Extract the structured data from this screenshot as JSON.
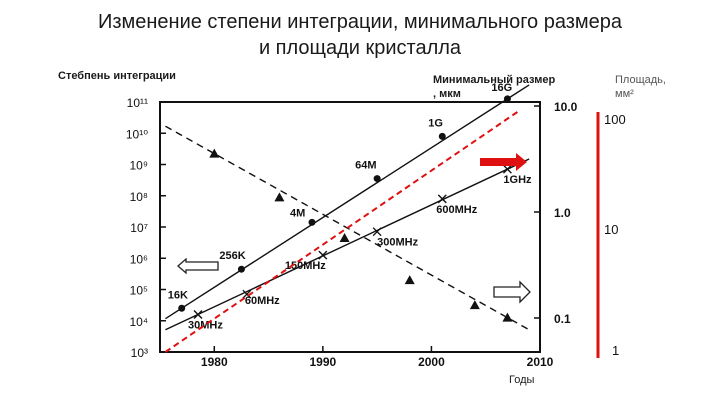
{
  "header": {
    "title_line1": "Изменение степени интеграции, минимального размера",
    "title_line2": "и площади кристалла"
  },
  "axis_labels": {
    "left": "Стебпень интеграции",
    "right_line1": "Минимальный размер",
    "right_line2": ", мкм",
    "area_line1": "Площадь,",
    "area_line2": "мм²",
    "bottom": "Годы"
  },
  "chart_data": {
    "type": "line",
    "x_ticks": [
      "1980",
      "1990",
      "2000",
      "2010"
    ],
    "y_left_ticks": [
      "10³",
      "10⁴",
      "10⁵",
      "10⁶",
      "10⁷",
      "10⁸",
      "10⁹",
      "10¹⁰",
      "10¹¹"
    ],
    "y_right_ticks": [
      "10.0",
      "1.0",
      "0.1"
    ],
    "y_area_ticks": [
      "100",
      "10",
      "1"
    ],
    "xlim": [
      1975,
      2010
    ],
    "ylim_log10": [
      3,
      11
    ],
    "series": [
      {
        "style": "solid-circle",
        "points": [
          {
            "x": 1977,
            "y": 4.4,
            "label": "16K"
          },
          {
            "x": 1982.5,
            "y": 5.65,
            "label": "256K"
          },
          {
            "x": 1989,
            "y": 7.15,
            "label": "4M"
          },
          {
            "x": 1995,
            "y": 8.55,
            "label": "64M"
          },
          {
            "x": 2001,
            "y": 9.9,
            "label": "1G"
          },
          {
            "x": 2007,
            "y": 11.1,
            "label": "16G"
          }
        ]
      },
      {
        "style": "solid-x",
        "points": [
          {
            "x": 1978.5,
            "y": 4.2,
            "label": "30MHz"
          },
          {
            "x": 1983,
            "y": 4.85,
            "label": "60MHz"
          },
          {
            "x": 1990,
            "y": 6.1,
            "label": "150MHz"
          },
          {
            "x": 1995,
            "y": 6.85,
            "label": "300MHz"
          },
          {
            "x": 2001,
            "y": 7.9,
            "label": "600MHz"
          },
          {
            "x": 2007,
            "y": 8.85,
            "label": "1GHz"
          }
        ]
      },
      {
        "style": "dashed-triangle",
        "points": [
          {
            "x": 1980,
            "y": 9.35
          },
          {
            "x": 1986,
            "y": 7.95
          },
          {
            "x": 1992,
            "y": 6.65
          },
          {
            "x": 1998,
            "y": 5.3
          },
          {
            "x": 2004,
            "y": 4.5
          },
          {
            "x": 2007,
            "y": 4.1
          }
        ]
      },
      {
        "style": "red-dashed",
        "points": [
          {
            "x": 1975.5,
            "y": 3.0
          },
          {
            "x": 2008,
            "y": 10.7
          }
        ]
      }
    ],
    "grid": false,
    "colors": {
      "red": "#e01010",
      "axis": "#111111"
    }
  }
}
